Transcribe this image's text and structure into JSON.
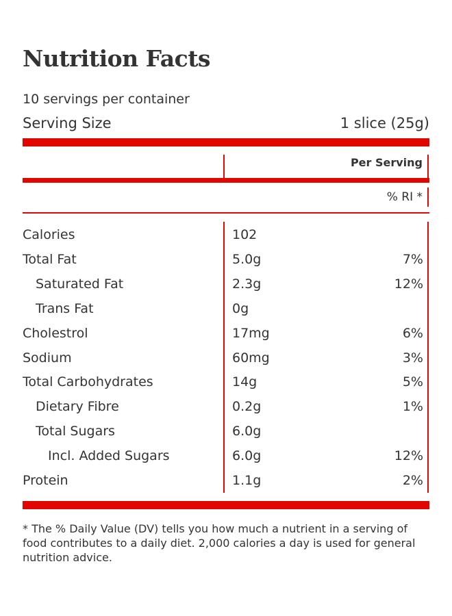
{
  "label": {
    "title": "Nutrition Facts",
    "servings_per_container": "10 servings per container",
    "serving_size_label": "Serving Size",
    "serving_size_value": "1 slice (25g)",
    "per_serving_header": "Per Serving",
    "ri_header": "% RI *",
    "accent_color": "#e10600",
    "rows": [
      {
        "name": "Calories",
        "amount": "102",
        "percent": "",
        "indent": 0
      },
      {
        "name": "Total Fat",
        "amount": "5.0g",
        "percent": "7%",
        "indent": 0
      },
      {
        "name": "Saturated Fat",
        "amount": "2.3g",
        "percent": "12%",
        "indent": 1
      },
      {
        "name": "Trans Fat",
        "amount": "0g",
        "percent": "",
        "indent": 1
      },
      {
        "name": "Cholestrol",
        "amount": "17mg",
        "percent": "6%",
        "indent": 0
      },
      {
        "name": "Sodium",
        "amount": "60mg",
        "percent": "3%",
        "indent": 0
      },
      {
        "name": "Total Carbohydrates",
        "amount": "14g",
        "percent": "5%",
        "indent": 0
      },
      {
        "name": "Dietary Fibre",
        "amount": "0.2g",
        "percent": "1%",
        "indent": 1
      },
      {
        "name": "Total Sugars",
        "amount": "6.0g",
        "percent": "",
        "indent": 1
      },
      {
        "name": "Incl. Added Sugars",
        "amount": "6.0g",
        "percent": "12%",
        "indent": 2
      },
      {
        "name": "Protein",
        "amount": "1.1g",
        "percent": "2%",
        "indent": 0
      }
    ],
    "footnote": "* The % Daily Value (DV) tells you how much a nutrient in a serving of food contributes to a daily diet. 2,000 calories a day is used for general nutrition advice."
  }
}
